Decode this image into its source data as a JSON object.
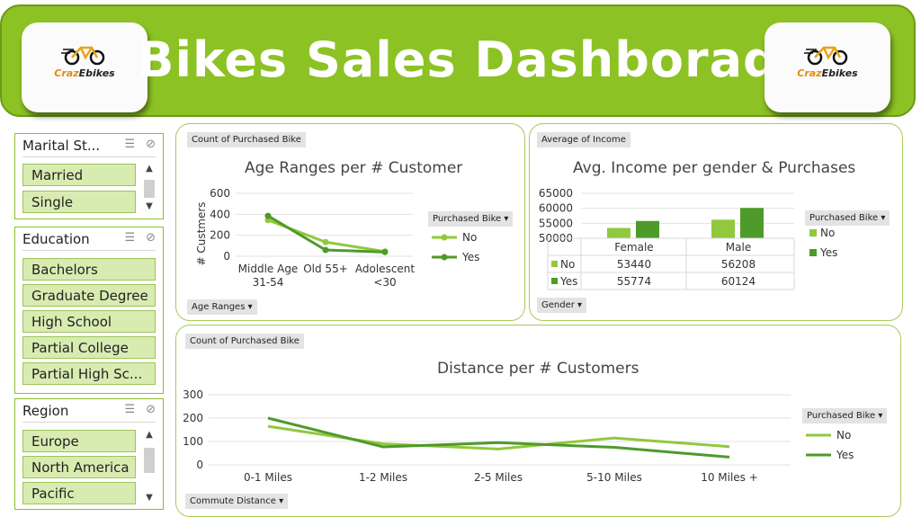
{
  "header": {
    "title": "Bikes Sales Dashborad",
    "logo_left": {
      "brand_a": "Craz",
      "brand_b": "Ebikes"
    },
    "logo_right": {
      "brand_a": "Craz",
      "brand_b": "Ebikes"
    }
  },
  "slicers": {
    "marital": {
      "title": "Marital St...",
      "items": [
        "Married",
        "Single"
      ]
    },
    "education": {
      "title": "Education",
      "items": [
        "Bachelors",
        "Graduate Degree",
        "High School",
        "Partial College",
        "Partial High Sc..."
      ]
    },
    "region": {
      "title": "Region",
      "items": [
        "Europe",
        "North America",
        "Pacific"
      ]
    },
    "icons": {
      "multiselect": "multi-select-icon",
      "clear": "clear-filter-icon"
    }
  },
  "colors": {
    "accent": "#8cc224",
    "series_no": "#92c83e",
    "series_yes": "#4e9a2a"
  },
  "age_panel": {
    "field_button": "Count of Purchased Bike",
    "axis_button": "Age Ranges",
    "legend_button": "Purchased Bike"
  },
  "income_panel": {
    "field_button": "Average of Income",
    "axis_button": "Gender",
    "legend_button": "Purchased Bike"
  },
  "distance_panel": {
    "field_button": "Count of Purchased Bike",
    "axis_button": "Commute Distance",
    "legend_button": "Purchased Bike"
  },
  "chart_data": [
    {
      "type": "line",
      "title": "Age Ranges per # Customer",
      "ylabel": "# Custmers",
      "xlabel": "",
      "categories": [
        "Middle Age 31-54",
        "Old 55+",
        "Adolescent <30"
      ],
      "category_lines": [
        [
          "Middle Age",
          "31-54"
        ],
        [
          "Old 55+"
        ],
        [
          "Adolescent",
          "<30"
        ]
      ],
      "yticks": [
        0,
        200,
        400,
        600
      ],
      "ylim": [
        0,
        600
      ],
      "series": [
        {
          "name": "No",
          "values": [
            345,
            135,
            45
          ]
        },
        {
          "name": "Yes",
          "values": [
            385,
            60,
            40
          ]
        }
      ],
      "legend": "right"
    },
    {
      "type": "bar",
      "title": "Avg. Income per gender & Purchases",
      "categories": [
        "Female",
        "Male"
      ],
      "yticks": [
        50000,
        55000,
        60000,
        65000
      ],
      "ylim": [
        50000,
        65000
      ],
      "series": [
        {
          "name": "No",
          "values": [
            53440,
            56208
          ]
        },
        {
          "name": "Yes",
          "values": [
            55774,
            60124
          ]
        }
      ],
      "table": [
        [
          "No",
          "53440",
          "56208"
        ],
        [
          "Yes",
          "55774",
          "60124"
        ]
      ],
      "legend": "right"
    },
    {
      "type": "line",
      "title": "Distance per # Customers",
      "categories": [
        "0-1 Miles",
        "1-2 Miles",
        "2-5 Miles",
        "5-10 Miles",
        "10 Miles +"
      ],
      "yticks": [
        0,
        100,
        200,
        300
      ],
      "ylim": [
        0,
        300
      ],
      "series": [
        {
          "name": "No",
          "values": [
            165,
            90,
            68,
            115,
            78
          ]
        },
        {
          "name": "Yes",
          "values": [
            200,
            77,
            95,
            75,
            33
          ]
        }
      ],
      "legend": "right"
    }
  ]
}
